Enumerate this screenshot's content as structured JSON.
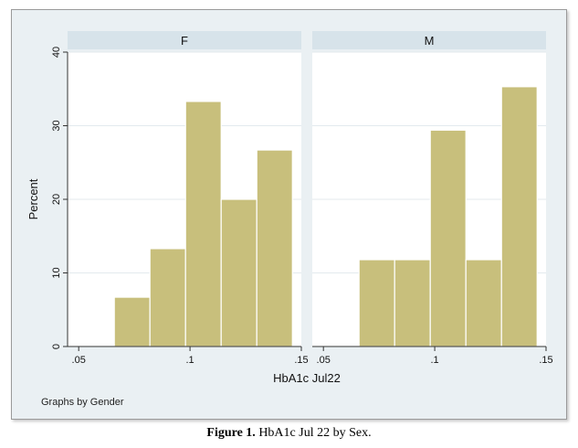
{
  "chart_data": {
    "type": "bar",
    "subtype": "histogram",
    "ylabel": "Percent",
    "xlabel": "HbA1c Jul22",
    "ylim": [
      0,
      40
    ],
    "yticks": [
      0,
      10,
      20,
      30,
      40
    ],
    "xlim": [
      0.045,
      0.15
    ],
    "xticks": [
      0.05,
      0.1,
      0.15
    ],
    "xtick_labels": [
      ".05",
      ".1",
      ".15"
    ],
    "bar_color": "#c8bf7c",
    "grid": true,
    "panels": [
      {
        "name": "F",
        "bins": [
          {
            "x0": 0.066,
            "x1": 0.082,
            "value": 6.7
          },
          {
            "x0": 0.082,
            "x1": 0.098,
            "value": 13.3
          },
          {
            "x0": 0.098,
            "x1": 0.114,
            "value": 33.3
          },
          {
            "x0": 0.114,
            "x1": 0.13,
            "value": 20.0
          },
          {
            "x0": 0.13,
            "x1": 0.146,
            "value": 26.7
          }
        ]
      },
      {
        "name": "M",
        "bins": [
          {
            "x0": 0.066,
            "x1": 0.082,
            "value": 11.8
          },
          {
            "x0": 0.082,
            "x1": 0.098,
            "value": 11.8
          },
          {
            "x0": 0.098,
            "x1": 0.114,
            "value": 29.4
          },
          {
            "x0": 0.114,
            "x1": 0.13,
            "value": 11.8
          },
          {
            "x0": 0.13,
            "x1": 0.146,
            "value": 35.3
          }
        ]
      }
    ]
  },
  "footnote": "Graphs by Gender",
  "caption": {
    "label": "Figure 1.",
    "text": " HbA1c Jul 22 by Sex."
  }
}
